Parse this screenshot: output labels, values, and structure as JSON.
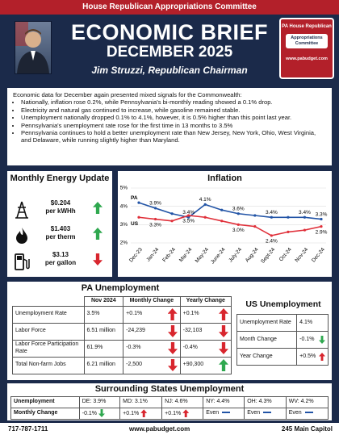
{
  "header": {
    "org": "House Republican Appropriations Committee",
    "title": "ECONOMIC BRIEF",
    "date": "DECEMBER 2025",
    "chairman": "Jim Struzzi, Republican Chairman",
    "logo": {
      "top": "PA House Republican",
      "middle": "Appropriations Committee",
      "url": "www.pabudget.com"
    }
  },
  "summary": {
    "intro": "Economic data for December again presented mixed signals for the Commonwealth:",
    "bullets": [
      "Nationally, inflation rose 0.2%, while Pennsylvania's bi-monthly reading showed a 0.1% drop.",
      "Electricity and natural gas continued to increase, while gasoline remained stable.",
      "Unemployment nationally dropped 0.1% to 4.1%, however, it is 0.5% higher than this point last year.",
      "Pennsylvania's unemployment rate rose for the first time in 13 months to 3.5%",
      "Pennsylvania continues to hold a better unemployment rate than New Jersey, New York, Ohio, West Virginia, and Delaware, while running slightly higher than Maryland."
    ]
  },
  "energy": {
    "title": "Monthly Energy Update",
    "items": [
      {
        "price": "$0.204",
        "unit": "per kWHh"
      },
      {
        "price": "$1.403",
        "unit": "per therm"
      },
      {
        "price": "$3.13",
        "unit": "per gallon"
      }
    ]
  },
  "inflation": {
    "type": "line",
    "title": "Inflation",
    "categories": [
      "Dec-23",
      "Jan-24",
      "Feb-24",
      "Mar-24",
      "May-24",
      "June-24",
      "July-24",
      "Aug-24",
      "Sept-24",
      "Oct-24",
      "Nov-24",
      "Dec-24"
    ],
    "series": [
      {
        "name": "PA",
        "color": "#2254a6",
        "values": [
          4.2,
          3.9,
          3.6,
          3.4,
          4.1,
          3.8,
          3.6,
          3.5,
          3.4,
          3.4,
          3.4,
          3.3
        ],
        "value_labels": [
          null,
          "3.9%",
          null,
          "3.4%",
          "4.1%",
          null,
          "3.6%",
          null,
          "3.4%",
          null,
          "3.4%",
          "3.3%"
        ]
      },
      {
        "name": "US",
        "color": "#e0303a",
        "values": [
          3.4,
          3.3,
          3.2,
          3.5,
          3.4,
          3.2,
          3.0,
          2.9,
          2.4,
          2.6,
          2.7,
          2.9
        ],
        "value_labels": [
          null,
          "3.3%",
          null,
          "3.5%",
          null,
          null,
          "3.0%",
          null,
          "2.4%",
          null,
          null,
          "2.9%"
        ]
      }
    ],
    "ylim": [
      2,
      5
    ],
    "yticks": [
      {
        "value": 2,
        "label": "2%"
      },
      {
        "value": 3,
        "label": "3%"
      },
      {
        "value": 4,
        "label": "4%"
      },
      {
        "value": 5,
        "label": "5%"
      }
    ],
    "grid": true
  },
  "pa_unemployment": {
    "title": "PA Unemployment",
    "columns": [
      "Nov 2024",
      "Monthly Change",
      "Yearly Change"
    ],
    "rows": [
      [
        "Unemployment Rate",
        "3.5%",
        "+0.1%",
        "+0.1%"
      ],
      [
        "Labor Force",
        "6.51 million",
        "-24,239",
        "-32,103"
      ],
      [
        "Labor Force Participation Rate",
        "61.9%",
        "-0.3%",
        "-0.4%"
      ],
      [
        "Total Non-farm Jobs",
        "6.21 million",
        "-2,500",
        "+90,300"
      ]
    ]
  },
  "us_unemployment": {
    "title": "US Unemployment",
    "rows": [
      [
        "Unemployment Rate",
        "4.1%"
      ],
      [
        "Month Change",
        "-0.1%"
      ],
      [
        "Year Change",
        "+0.5%"
      ]
    ]
  },
  "surrounding": {
    "title": "Surrounding States Unemployment",
    "rows": [
      [
        "Unemployment",
        "DE: 3.9%",
        "MD: 3.1%",
        "NJ: 4.6%",
        "NY: 4.4%",
        "OH: 4.3%",
        "WV: 4.2%"
      ],
      [
        "Monthly Change",
        "-0.1%",
        "+0.1%",
        "+0.1%",
        "Even",
        "Even",
        "Even"
      ]
    ]
  },
  "footer": {
    "phone": "717-787-1711",
    "url": "www.pabudget.com",
    "address": "245 Main Capitol"
  }
}
